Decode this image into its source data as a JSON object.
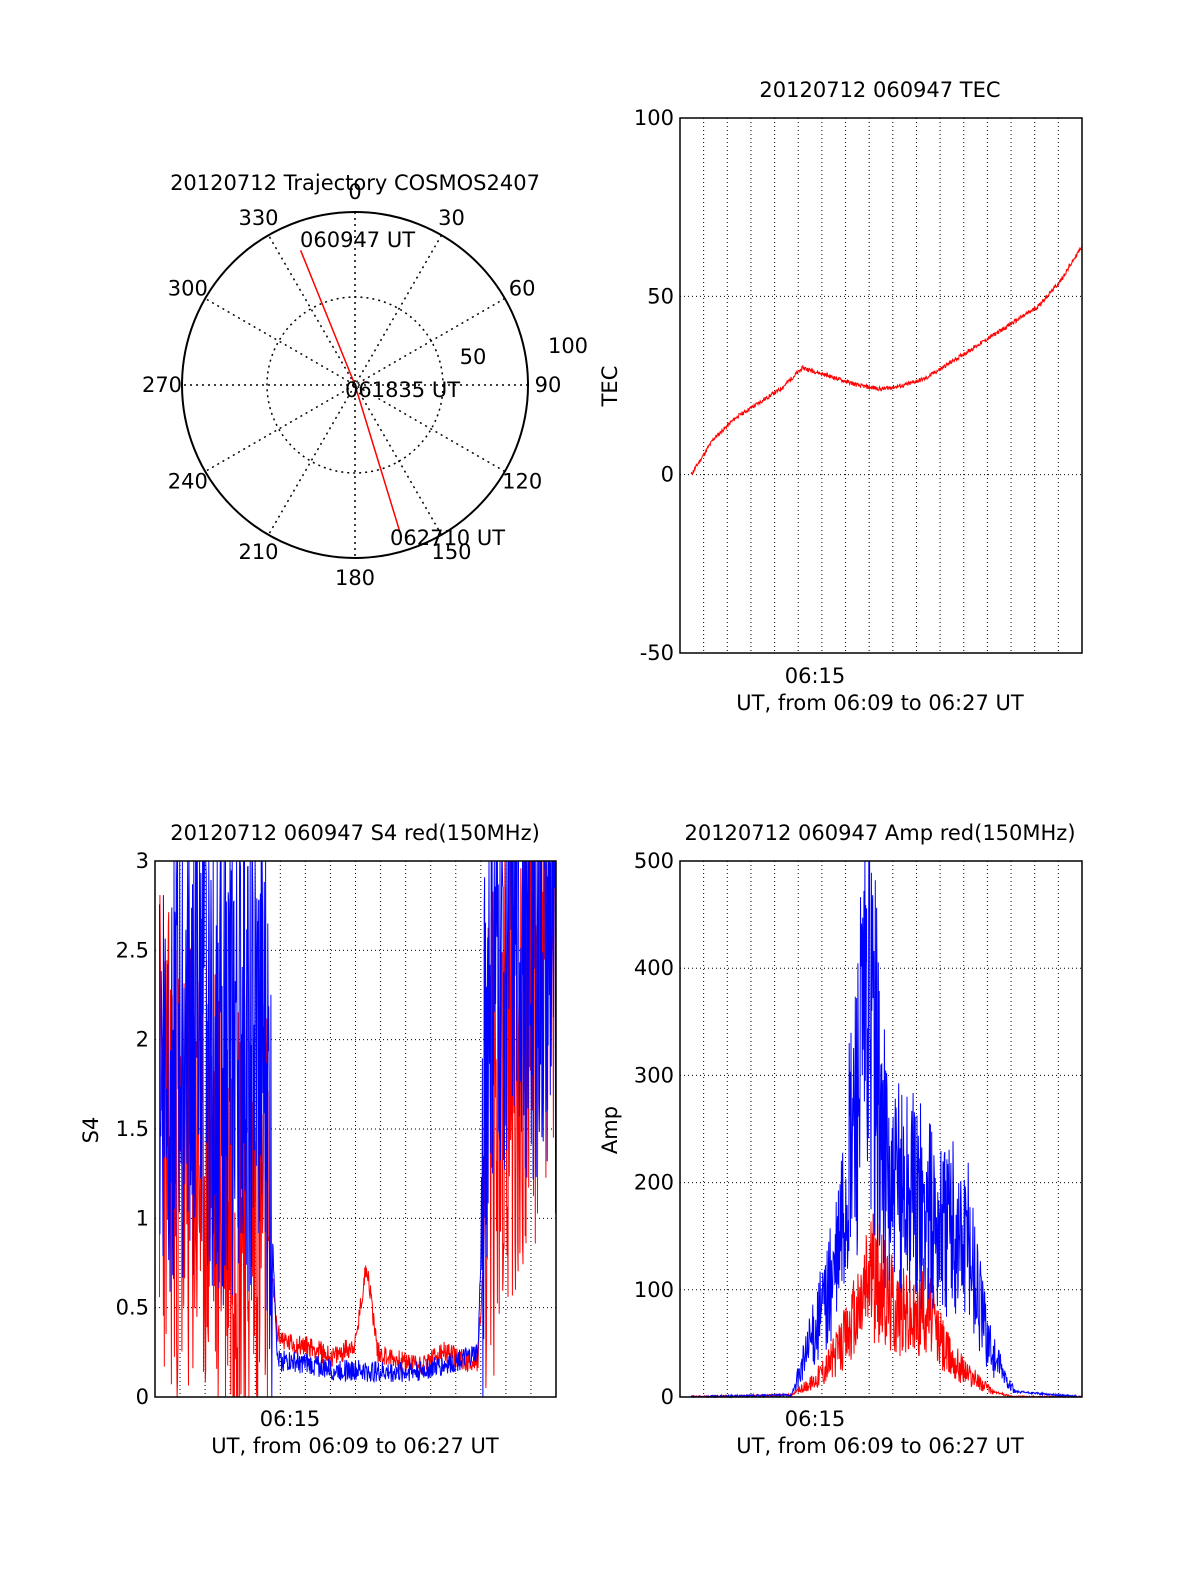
{
  "chart_data": [
    {
      "type": "polar",
      "title": "20120712 Trajectory COSMOS2407",
      "azimuth_labels": [
        "0",
        "30",
        "60",
        "90",
        "120",
        "150",
        "180",
        "210",
        "240",
        "270",
        "300",
        "330"
      ],
      "radial_labels": [
        "50",
        "100"
      ],
      "trajectory": {
        "color": "#ff0000",
        "points": [
          {
            "az": 338,
            "r": 84
          },
          {
            "az": 180,
            "r": 0
          },
          {
            "az": 163,
            "r": 92
          }
        ],
        "labels": [
          {
            "text": "060947 UT",
            "az": 338,
            "r": 84
          },
          {
            "text": "061835 UT",
            "az": 180,
            "r": 0
          },
          {
            "text": "062710 UT",
            "az": 163,
            "r": 92
          }
        ]
      }
    },
    {
      "type": "line",
      "title": "20120712 060947 TEC",
      "xlabel": "UT, from 06:09 to 06:27 UT",
      "ylabel": "TEC",
      "x_tick_label": "06:15",
      "ylim": [
        -50,
        100
      ],
      "yticks": [
        "-50",
        "0",
        "50",
        "100"
      ],
      "series": [
        {
          "color": "#ff0000",
          "x": [
            0.5,
            1.5,
            2.5,
            3.5,
            4.5,
            5.5,
            6,
            7,
            8,
            9,
            10,
            11,
            12,
            13,
            14,
            15,
            16,
            17,
            18
          ],
          "y": [
            0,
            10,
            16,
            20,
            24,
            30,
            29,
            27,
            25,
            24,
            25,
            27,
            31,
            35,
            39,
            43,
            47,
            54,
            64
          ]
        }
      ]
    },
    {
      "type": "line",
      "title": "20120712 060947 S4 red(150MHz)",
      "xlabel": "UT, from 06:09 to 06:27 UT",
      "ylabel": "S4",
      "x_tick_label": "06:15",
      "ylim": [
        0,
        3
      ],
      "yticks": [
        "0",
        "0.5",
        "1",
        "1.5",
        "2",
        "2.5",
        "3"
      ],
      "series": [
        {
          "color": "#ff0000",
          "x": [
            0.2,
            1,
            2,
            3,
            4,
            5,
            5.5,
            6,
            7,
            8,
            9,
            9.5,
            10,
            11,
            12,
            13,
            14,
            14.5,
            15,
            16,
            17,
            18
          ],
          "y": [
            1.6,
            1.2,
            1.3,
            1.2,
            1.1,
            1.0,
            0.35,
            0.3,
            0.28,
            0.22,
            0.3,
            0.75,
            0.25,
            0.2,
            0.18,
            0.25,
            0.2,
            0.2,
            1.4,
            1.8,
            2.2,
            2.5
          ]
        },
        {
          "color": "#0000ff",
          "x": [
            0.2,
            1,
            2,
            3,
            4,
            5,
            5.5,
            6,
            7,
            8,
            9,
            10,
            11,
            12,
            13,
            14,
            14.5,
            15,
            16,
            17,
            18
          ],
          "y": [
            1.9,
            2.0,
            2.1,
            1.9,
            2.0,
            1.8,
            0.2,
            0.2,
            0.18,
            0.15,
            0.15,
            0.14,
            0.14,
            0.15,
            0.18,
            0.22,
            0.25,
            2.4,
            2.6,
            2.5,
            2.4
          ]
        }
      ]
    },
    {
      "type": "line",
      "title": "20120712 060947 Amp red(150MHz)",
      "xlabel": "UT, from 06:09 to 06:27 UT",
      "ylabel": "Amp",
      "x_tick_label": "06:15",
      "ylim": [
        0,
        500
      ],
      "yticks": [
        "0",
        "100",
        "200",
        "300",
        "400",
        "500"
      ],
      "series": [
        {
          "color": "#ff0000",
          "x": [
            0.5,
            5,
            6,
            7,
            8,
            8.5,
            9,
            10,
            10.5,
            11,
            11.5,
            12,
            13,
            14,
            15,
            18
          ],
          "y": [
            0,
            2,
            15,
            40,
            80,
            120,
            100,
            80,
            70,
            90,
            60,
            40,
            20,
            5,
            0,
            0
          ]
        },
        {
          "color": "#0000ff",
          "x": [
            0.5,
            5,
            6,
            7,
            7.5,
            8,
            8.5,
            9,
            9.5,
            10,
            11,
            12,
            13,
            13.5,
            14,
            14.5,
            15,
            18
          ],
          "y": [
            0,
            2,
            60,
            120,
            200,
            300,
            380,
            250,
            180,
            200,
            170,
            160,
            140,
            80,
            40,
            20,
            5,
            0
          ]
        }
      ]
    }
  ]
}
